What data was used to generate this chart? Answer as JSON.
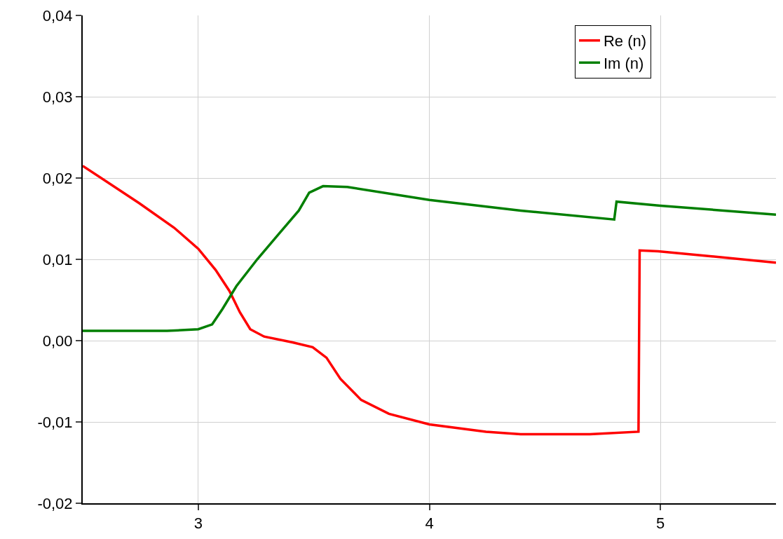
{
  "chart_data": {
    "type": "line",
    "xlim": [
      2.5,
      5.5
    ],
    "xticks": [
      3,
      4,
      5
    ],
    "ylim": [
      -0.02,
      0.04
    ],
    "yticks": [
      {
        "value": -0.02,
        "label": "-0,02"
      },
      {
        "value": -0.01,
        "label": "-0,01"
      },
      {
        "value": 0.0,
        "label": "0,00"
      },
      {
        "value": 0.01,
        "label": "0,01"
      },
      {
        "value": 0.02,
        "label": "0,02"
      },
      {
        "value": 0.03,
        "label": "0,03"
      },
      {
        "value": 0.04,
        "label": "0,04"
      }
    ],
    "grid": true,
    "legend": "top right",
    "marker": "none",
    "line_style": "solid",
    "series": [
      {
        "name": "Re (n)",
        "color": "#ff0000",
        "x": [
          2.5,
          2.745,
          2.895,
          3.0,
          3.075,
          3.135,
          3.18,
          3.225,
          3.285,
          3.405,
          3.495,
          3.555,
          3.615,
          3.705,
          3.825,
          4.0,
          4.245,
          4.395,
          4.695,
          4.905,
          4.91,
          4.99,
          5.5
        ],
        "values": [
          0.0215,
          0.0169,
          0.0139,
          0.0113,
          0.0087,
          0.0061,
          0.0035,
          0.0014,
          0.0005,
          -0.0002,
          -0.0008,
          -0.0021,
          -0.0047,
          -0.0073,
          -0.009,
          -0.0103,
          -0.0112,
          -0.0115,
          -0.0115,
          -0.0112,
          0.0111,
          0.011,
          0.0096
        ]
      },
      {
        "name": "Im (n)",
        "color": "#007f00",
        "x": [
          2.5,
          2.865,
          3.0,
          3.06,
          3.105,
          3.165,
          3.255,
          3.345,
          3.435,
          3.48,
          3.54,
          3.645,
          4.0,
          4.395,
          4.8,
          4.81,
          5.0,
          5.5
        ],
        "values": [
          0.0012,
          0.0012,
          0.0014,
          0.002,
          0.0039,
          0.0067,
          0.01,
          0.013,
          0.016,
          0.0182,
          0.019,
          0.0189,
          0.0173,
          0.016,
          0.0149,
          0.0171,
          0.0166,
          0.0155
        ]
      }
    ]
  }
}
